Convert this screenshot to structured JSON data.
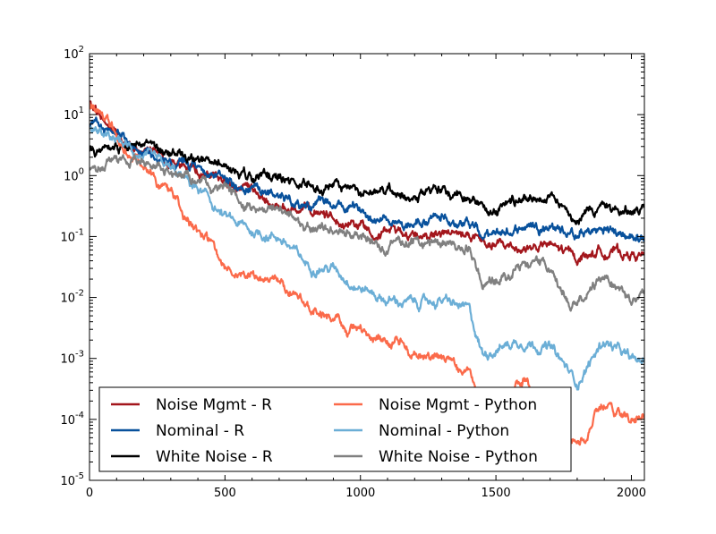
{
  "chart_data": {
    "type": "line",
    "title": "",
    "xlabel": "",
    "ylabel": "",
    "xlim": [
      0,
      2048
    ],
    "ylim": [
      1e-05,
      100
    ],
    "yscale": "log",
    "x_ticks": [
      "0",
      "500",
      "1000",
      "1500",
      "2000"
    ],
    "y_ticks": [
      {
        "base": "10",
        "exp": "-5"
      },
      {
        "base": "10",
        "exp": "-4"
      },
      {
        "base": "10",
        "exp": "-3"
      },
      {
        "base": "10",
        "exp": "-2"
      },
      {
        "base": "10",
        "exp": "-1"
      },
      {
        "base": "10",
        "exp": "0"
      },
      {
        "base": "10",
        "exp": "1"
      },
      {
        "base": "10",
        "exp": "2"
      }
    ],
    "legend_position": "lower-left",
    "series": [
      {
        "name": "Noise Mgmt - R",
        "color": "#a3161c",
        "x": [
          0,
          50,
          100,
          150,
          200,
          300,
          400,
          500,
          600,
          700,
          800,
          900,
          1000,
          1100,
          1200,
          1300,
          1400,
          1450,
          1500,
          1600,
          1700,
          1800,
          1900,
          2000,
          2048
        ],
        "values": [
          14,
          8,
          5,
          3.5,
          2.5,
          1.7,
          1.1,
          0.8,
          0.45,
          0.3,
          0.25,
          0.2,
          0.15,
          0.12,
          0.11,
          0.11,
          0.1,
          0.07,
          0.07,
          0.065,
          0.07,
          0.045,
          0.06,
          0.05,
          0.05
        ]
      },
      {
        "name": "Nominal - R",
        "color": "#08519c",
        "x": [
          0,
          50,
          100,
          150,
          200,
          300,
          400,
          500,
          600,
          700,
          800,
          900,
          1000,
          1100,
          1200,
          1300,
          1400,
          1450,
          1500,
          1600,
          1700,
          1800,
          1900,
          2000,
          2048
        ],
        "values": [
          7,
          6,
          5,
          3.3,
          2.3,
          1.6,
          1.2,
          0.8,
          0.6,
          0.5,
          0.35,
          0.32,
          0.25,
          0.2,
          0.17,
          0.2,
          0.18,
          0.1,
          0.1,
          0.15,
          0.16,
          0.1,
          0.13,
          0.1,
          0.1
        ]
      },
      {
        "name": "White Noise - R",
        "color": "#000000",
        "x": [
          0,
          50,
          100,
          150,
          200,
          300,
          400,
          500,
          600,
          700,
          800,
          900,
          1000,
          1100,
          1200,
          1300,
          1400,
          1450,
          1500,
          1600,
          1700,
          1800,
          1900,
          2000,
          2048
        ],
        "values": [
          2.6,
          2.8,
          3,
          3.2,
          3,
          2.2,
          1.7,
          1.3,
          1,
          0.9,
          0.7,
          0.6,
          0.55,
          0.5,
          0.55,
          0.55,
          0.45,
          0.27,
          0.3,
          0.45,
          0.45,
          0.22,
          0.3,
          0.25,
          0.25
        ]
      },
      {
        "name": "Noise Mgmt - Python",
        "color": "#fb6a4a",
        "x": [
          0,
          50,
          100,
          150,
          200,
          300,
          400,
          500,
          600,
          700,
          800,
          900,
          1000,
          1100,
          1200,
          1300,
          1400,
          1450,
          1500,
          1600,
          1700,
          1800,
          1900,
          2000,
          2048
        ],
        "values": [
          15,
          11,
          5,
          2.5,
          1.5,
          0.5,
          0.12,
          0.04,
          0.02,
          0.02,
          0.008,
          0.004,
          0.003,
          0.0018,
          0.0012,
          0.0009,
          0.0006,
          0.0002,
          0.0002,
          0.0004,
          0.0002,
          3e-05,
          0.00018,
          0.0001,
          0.0001
        ]
      },
      {
        "name": "Nominal - Python",
        "color": "#6baed6",
        "x": [
          0,
          50,
          100,
          150,
          200,
          300,
          400,
          500,
          600,
          700,
          800,
          900,
          1000,
          1100,
          1200,
          1300,
          1400,
          1450,
          1500,
          1600,
          1700,
          1800,
          1900,
          2000,
          2048
        ],
        "values": [
          5.5,
          5,
          4,
          2.8,
          2,
          1.2,
          0.6,
          0.2,
          0.12,
          0.1,
          0.035,
          0.03,
          0.015,
          0.009,
          0.008,
          0.009,
          0.006,
          0.0012,
          0.0015,
          0.002,
          0.0015,
          0.0004,
          0.002,
          0.0009,
          0.0009
        ]
      },
      {
        "name": "White Noise - Python",
        "color": "#808080",
        "x": [
          0,
          50,
          100,
          150,
          200,
          300,
          400,
          500,
          600,
          700,
          800,
          900,
          1000,
          1100,
          1200,
          1300,
          1400,
          1450,
          1500,
          1600,
          1700,
          1800,
          1900,
          2000,
          2048
        ],
        "values": [
          1.4,
          1.6,
          1.8,
          2,
          1.8,
          1.2,
          0.8,
          0.55,
          0.3,
          0.28,
          0.15,
          0.13,
          0.1,
          0.07,
          0.08,
          0.08,
          0.07,
          0.015,
          0.02,
          0.035,
          0.03,
          0.007,
          0.025,
          0.01,
          0.01
        ]
      }
    ]
  }
}
